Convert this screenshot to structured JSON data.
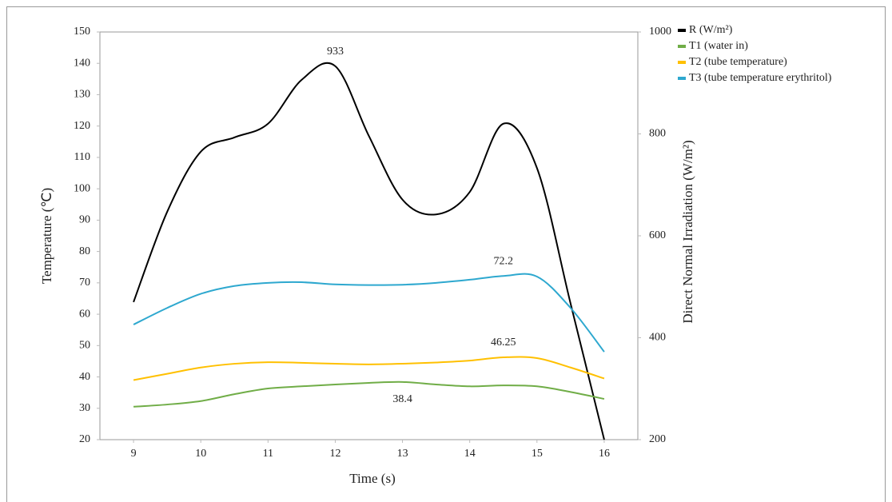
{
  "chart_data": {
    "type": "line",
    "x_label": "Time (s)",
    "y_label": "Temperature (℃)",
    "y2_label": "Direct Normal Irradiation (W/m²)",
    "x": [
      9,
      9.5,
      10,
      10.5,
      11,
      11.5,
      12,
      12.5,
      13,
      13.5,
      14,
      14.5,
      15,
      15.5,
      16
    ],
    "xlim": [
      8.5,
      16.5
    ],
    "xticks": [
      9,
      10,
      11,
      12,
      13,
      14,
      15,
      16
    ],
    "ylim": [
      20,
      150
    ],
    "yticks": [
      20,
      30,
      40,
      50,
      60,
      70,
      80,
      90,
      100,
      110,
      120,
      130,
      140,
      150
    ],
    "y2lim": [
      200,
      1000
    ],
    "y2ticks": [
      200,
      400,
      600,
      800,
      1000
    ],
    "series": [
      {
        "name": "R  (W/m²)",
        "color": "#000000",
        "axis": "y2",
        "values": [
          470,
          647,
          765,
          793,
          820,
          906,
          933,
          796,
          671,
          642,
          686,
          820,
          733,
          467,
          200
        ],
        "value_labels": [
          null,
          null,
          null,
          null,
          null,
          null,
          "933",
          null,
          null,
          null,
          null,
          null,
          null,
          null,
          null
        ]
      },
      {
        "name": "T1 (water in)",
        "color": "#70ad47",
        "values": [
          30.5,
          31.2,
          32.3,
          34.5,
          36.3,
          37,
          37.6,
          38.1,
          38.4,
          37.6,
          37,
          37.3,
          37,
          35.2,
          33
        ],
        "value_labels": [
          null,
          null,
          null,
          null,
          null,
          null,
          null,
          null,
          "38.4",
          null,
          null,
          null,
          null,
          null,
          null
        ]
      },
      {
        "name": "T2 (tube temperature)",
        "color": "#ffc000",
        "values": [
          39,
          41,
          43,
          44.2,
          44.7,
          44.5,
          44.2,
          44,
          44.2,
          44.6,
          45.2,
          46.25,
          46,
          43,
          39.5
        ],
        "value_labels": [
          null,
          null,
          null,
          null,
          null,
          null,
          null,
          null,
          null,
          null,
          null,
          "46.25",
          null,
          null,
          null
        ]
      },
      {
        "name": "T3 (tube temperature erythritol)",
        "color": "#2ea8cf",
        "values": [
          56.7,
          62,
          66.5,
          69,
          70,
          70.2,
          69.5,
          69.3,
          69.4,
          70,
          71,
          72.2,
          72,
          62,
          48
        ],
        "value_labels": [
          null,
          null,
          null,
          null,
          null,
          null,
          null,
          null,
          null,
          null,
          null,
          "72.2",
          null,
          null,
          null
        ]
      }
    ]
  }
}
